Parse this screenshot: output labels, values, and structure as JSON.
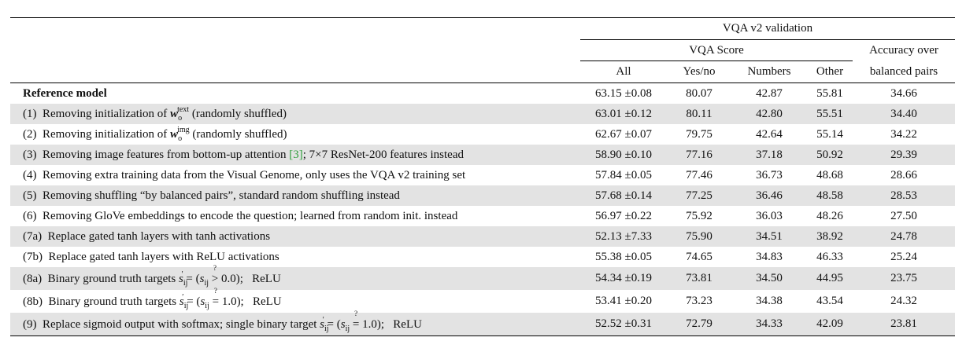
{
  "header": {
    "group": "VQA v2 validation",
    "vqa_score": "VQA Score",
    "accuracy_line1": "Accuracy over",
    "accuracy_line2": "balanced pairs",
    "cols": [
      "All",
      "Yes/no",
      "Numbers",
      "Other"
    ]
  },
  "rows": [
    {
      "label": "",
      "desc": "Reference model",
      "all": "63.15 ±0.08",
      "yesno": "80.07",
      "numbers": "42.87",
      "other": "55.81",
      "acc": "34.66"
    },
    {
      "label": "(1)",
      "desc": "Removing initialization of",
      "desc_after": "(randomly shuffled)",
      "sym_sup": "text",
      "all": "63.01 ±0.12",
      "yesno": "80.11",
      "numbers": "42.80",
      "other": "55.51",
      "acc": "34.40"
    },
    {
      "label": "(2)",
      "desc": "Removing initialization of",
      "desc_after": "(randomly shuffled)",
      "sym_sup": "img",
      "all": "62.67 ±0.07",
      "yesno": "79.75",
      "numbers": "42.64",
      "other": "55.14",
      "acc": "34.22"
    },
    {
      "label": "(3)",
      "desc": "Removing image features from bottom-up attention",
      "ref": "[3]",
      "desc_after": "; 7×7 ResNet-200 features instead",
      "all": "58.90 ±0.10",
      "yesno": "77.16",
      "numbers": "37.18",
      "other": "50.92",
      "acc": "29.39"
    },
    {
      "label": "(4)",
      "desc": "Removing extra training data from the Visual Genome, only uses the VQA v2 training set",
      "all": "57.84 ±0.05",
      "yesno": "77.46",
      "numbers": "36.73",
      "other": "48.68",
      "acc": "28.66"
    },
    {
      "label": "(5)",
      "desc": "Removing shuffling “by balanced pairs”, standard random shuffling instead",
      "all": "57.68 ±0.14",
      "yesno": "77.25",
      "numbers": "36.46",
      "other": "48.58",
      "acc": "28.53"
    },
    {
      "label": "(6)",
      "desc": "Removing GloVe embeddings to encode the question; learned from random init. instead",
      "all": "56.97 ±0.22",
      "yesno": "75.92",
      "numbers": "36.03",
      "other": "48.26",
      "acc": "27.50"
    },
    {
      "label": "(7a)",
      "desc": "Replace gated tanh layers with tanh activations",
      "all": "52.13 ±7.33",
      "yesno": "75.90",
      "numbers": "34.51",
      "other": "38.92",
      "acc": "24.78"
    },
    {
      "label": "(7b)",
      "desc": "Replace gated tanh layers with ReLU activations",
      "all": "55.38 ±0.05",
      "yesno": "74.65",
      "numbers": "34.83",
      "other": "46.33",
      "acc": "25.24"
    },
    {
      "label": "(8a)",
      "desc": "Binary ground truth targets",
      "op": ">",
      "thr": "0.0",
      "suffix": "ReLU",
      "all": "54.34 ±0.19",
      "yesno": "73.81",
      "numbers": "34.50",
      "other": "44.95",
      "acc": "23.75"
    },
    {
      "label": "(8b)",
      "desc": "Binary ground truth targets",
      "op": "=",
      "thr": "1.0",
      "suffix": "ReLU",
      "all": "53.41 ±0.20",
      "yesno": "73.23",
      "numbers": "34.38",
      "other": "43.54",
      "acc": "24.32"
    },
    {
      "label": "(9)",
      "desc": "Replace sigmoid output with softmax; single binary target",
      "op": "=",
      "thr": "1.0",
      "suffix": "ReLU",
      "all": "52.52 ±0.31",
      "yesno": "72.79",
      "numbers": "34.33",
      "other": "42.09",
      "acc": "23.81"
    }
  ]
}
